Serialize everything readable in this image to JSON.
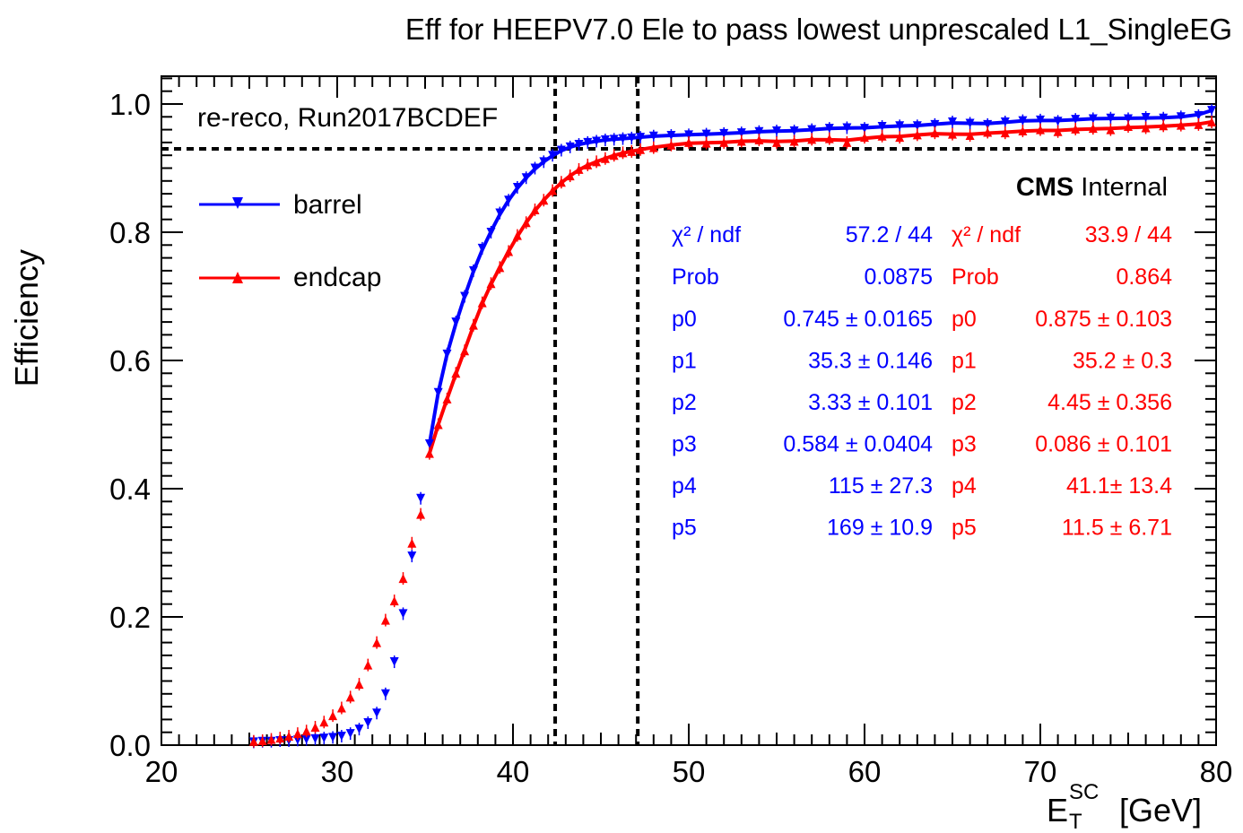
{
  "chart_data": {
    "type": "scatter",
    "title": "Eff for HEEPV7.0 Ele to pass lowest unprescaled L1_SingleEG",
    "xlabel": "E",
    "xlabel_sub": "T",
    "xlabel_sup": "SC",
    "xlabel_unit": "[GeV]",
    "ylabel": "Efficiency",
    "xlim": [
      20,
      80
    ],
    "ylim": [
      0.0,
      1.05
    ],
    "x_ticks": [
      "20",
      "30",
      "40",
      "50",
      "60",
      "70",
      "80"
    ],
    "y_ticks": [
      "0.0",
      "0.2",
      "0.4",
      "0.6",
      "0.8",
      "1.0"
    ],
    "grid": false,
    "annotation": "re-reco, Run2017BCDEF",
    "cms_label": "CMS",
    "cms_sub": "Internal",
    "reference_lines": {
      "horizontal_y": 0.93,
      "vertical_x": [
        42.4,
        47.1
      ]
    },
    "legend": {
      "position": "top-left",
      "entries": [
        "barrel",
        "endcap"
      ]
    },
    "series": [
      {
        "name": "barrel",
        "color": "#0000ff",
        "marker": "triangle-down",
        "x": [
          25.25,
          25.75,
          26.25,
          26.75,
          27.25,
          27.75,
          28.25,
          28.75,
          29.25,
          29.75,
          30.25,
          30.75,
          31.25,
          31.75,
          32.25,
          32.75,
          33.25,
          33.75,
          34.25,
          34.75,
          35.25,
          35.75,
          36.25,
          36.75,
          37.25,
          37.75,
          38.25,
          38.75,
          39.25,
          39.75,
          40.25,
          40.75,
          41.25,
          41.75,
          42.25,
          42.75,
          43.25,
          43.75,
          44.25,
          44.75,
          45.25,
          45.75,
          46.25,
          46.75,
          47.25,
          48,
          49,
          50,
          51,
          52,
          53,
          54,
          55,
          56,
          57,
          58,
          59,
          60,
          61,
          62,
          63,
          64,
          65,
          66,
          67,
          68,
          69,
          70,
          71,
          72,
          73,
          74,
          75,
          76,
          77,
          78,
          79,
          79.75
        ],
        "y": [
          0.005,
          0.006,
          0.006,
          0.007,
          0.007,
          0.008,
          0.009,
          0.01,
          0.011,
          0.012,
          0.014,
          0.018,
          0.025,
          0.035,
          0.05,
          0.08,
          0.13,
          0.205,
          0.295,
          0.385,
          0.47,
          0.55,
          0.61,
          0.66,
          0.7,
          0.74,
          0.775,
          0.8,
          0.83,
          0.85,
          0.87,
          0.885,
          0.9,
          0.91,
          0.92,
          0.928,
          0.933,
          0.937,
          0.94,
          0.942,
          0.944,
          0.945,
          0.946,
          0.947,
          0.948,
          0.95,
          0.951,
          0.952,
          0.953,
          0.954,
          0.955,
          0.957,
          0.958,
          0.958,
          0.96,
          0.962,
          0.963,
          0.962,
          0.965,
          0.966,
          0.966,
          0.968,
          0.972,
          0.97,
          0.968,
          0.972,
          0.974,
          0.975,
          0.973,
          0.976,
          0.977,
          0.978,
          0.977,
          0.979,
          0.978,
          0.98,
          0.982,
          0.99
        ],
        "fit": {
          "x_range": [
            35.2,
            80
          ],
          "chi2_label": "χ² / ndf",
          "chi2_value": "57.2 / 44",
          "prob_label": "Prob",
          "prob_value": "0.0875",
          "params": [
            {
              "name": "p0",
              "value": "0.745 ± 0.0165"
            },
            {
              "name": "p1",
              "value": "35.3 ± 0.146"
            },
            {
              "name": "p2",
              "value": "3.33 ± 0.101"
            },
            {
              "name": "p3",
              "value": "0.584 ± 0.0404"
            },
            {
              "name": "p4",
              "value": "115 ±  27.3"
            },
            {
              "name": "p5",
              "value": "169 ±  10.9"
            }
          ]
        }
      },
      {
        "name": "endcap",
        "color": "#ff0000",
        "marker": "triangle-up",
        "x": [
          25.25,
          25.75,
          26.25,
          26.75,
          27.25,
          27.75,
          28.25,
          28.75,
          29.25,
          29.75,
          30.25,
          30.75,
          31.25,
          31.75,
          32.25,
          32.75,
          33.25,
          33.75,
          34.25,
          34.75,
          35.25,
          35.75,
          36.25,
          36.75,
          37.25,
          37.75,
          38.25,
          38.75,
          39.25,
          39.75,
          40.25,
          40.75,
          41.25,
          41.75,
          42.25,
          42.75,
          43.25,
          43.75,
          44.25,
          44.75,
          45.25,
          45.75,
          46.25,
          46.75,
          47.25,
          48,
          49,
          50,
          51,
          52,
          53,
          54,
          55,
          56,
          57,
          58,
          59,
          60,
          61,
          62,
          63,
          64,
          65,
          66,
          67,
          68,
          69,
          70,
          71,
          72,
          73,
          74,
          75,
          76,
          77,
          78,
          79,
          79.75
        ],
        "y": [
          0.006,
          0.007,
          0.009,
          0.011,
          0.014,
          0.018,
          0.022,
          0.028,
          0.036,
          0.046,
          0.058,
          0.075,
          0.095,
          0.125,
          0.16,
          0.195,
          0.225,
          0.26,
          0.315,
          0.36,
          0.455,
          0.5,
          0.54,
          0.58,
          0.615,
          0.655,
          0.69,
          0.72,
          0.745,
          0.77,
          0.795,
          0.815,
          0.835,
          0.85,
          0.865,
          0.878,
          0.888,
          0.898,
          0.905,
          0.91,
          0.915,
          0.92,
          0.924,
          0.926,
          0.929,
          0.932,
          0.936,
          0.94,
          0.939,
          0.94,
          0.942,
          0.944,
          0.94,
          0.942,
          0.945,
          0.946,
          0.94,
          0.948,
          0.95,
          0.948,
          0.952,
          0.955,
          0.953,
          0.951,
          0.956,
          0.955,
          0.958,
          0.96,
          0.957,
          0.961,
          0.962,
          0.96,
          0.965,
          0.963,
          0.966,
          0.967,
          0.968,
          0.972
        ],
        "fit": {
          "x_range": [
            35.2,
            80
          ],
          "chi2_label": "χ² / ndf",
          "chi2_value": "33.9 / 44",
          "prob_label": "Prob",
          "prob_value": "0.864",
          "params": [
            {
              "name": "p0",
              "value": "0.875 ± 0.103"
            },
            {
              "name": "p1",
              "value": "35.2 ±   0.3"
            },
            {
              "name": "p2",
              "value": "4.45 ± 0.356"
            },
            {
              "name": "p3",
              "value": "0.086 ± 0.101"
            },
            {
              "name": "p4",
              "value": "41.1±  13.4"
            },
            {
              "name": "p5",
              "value": "11.5 ±  6.71"
            }
          ]
        }
      }
    ]
  }
}
